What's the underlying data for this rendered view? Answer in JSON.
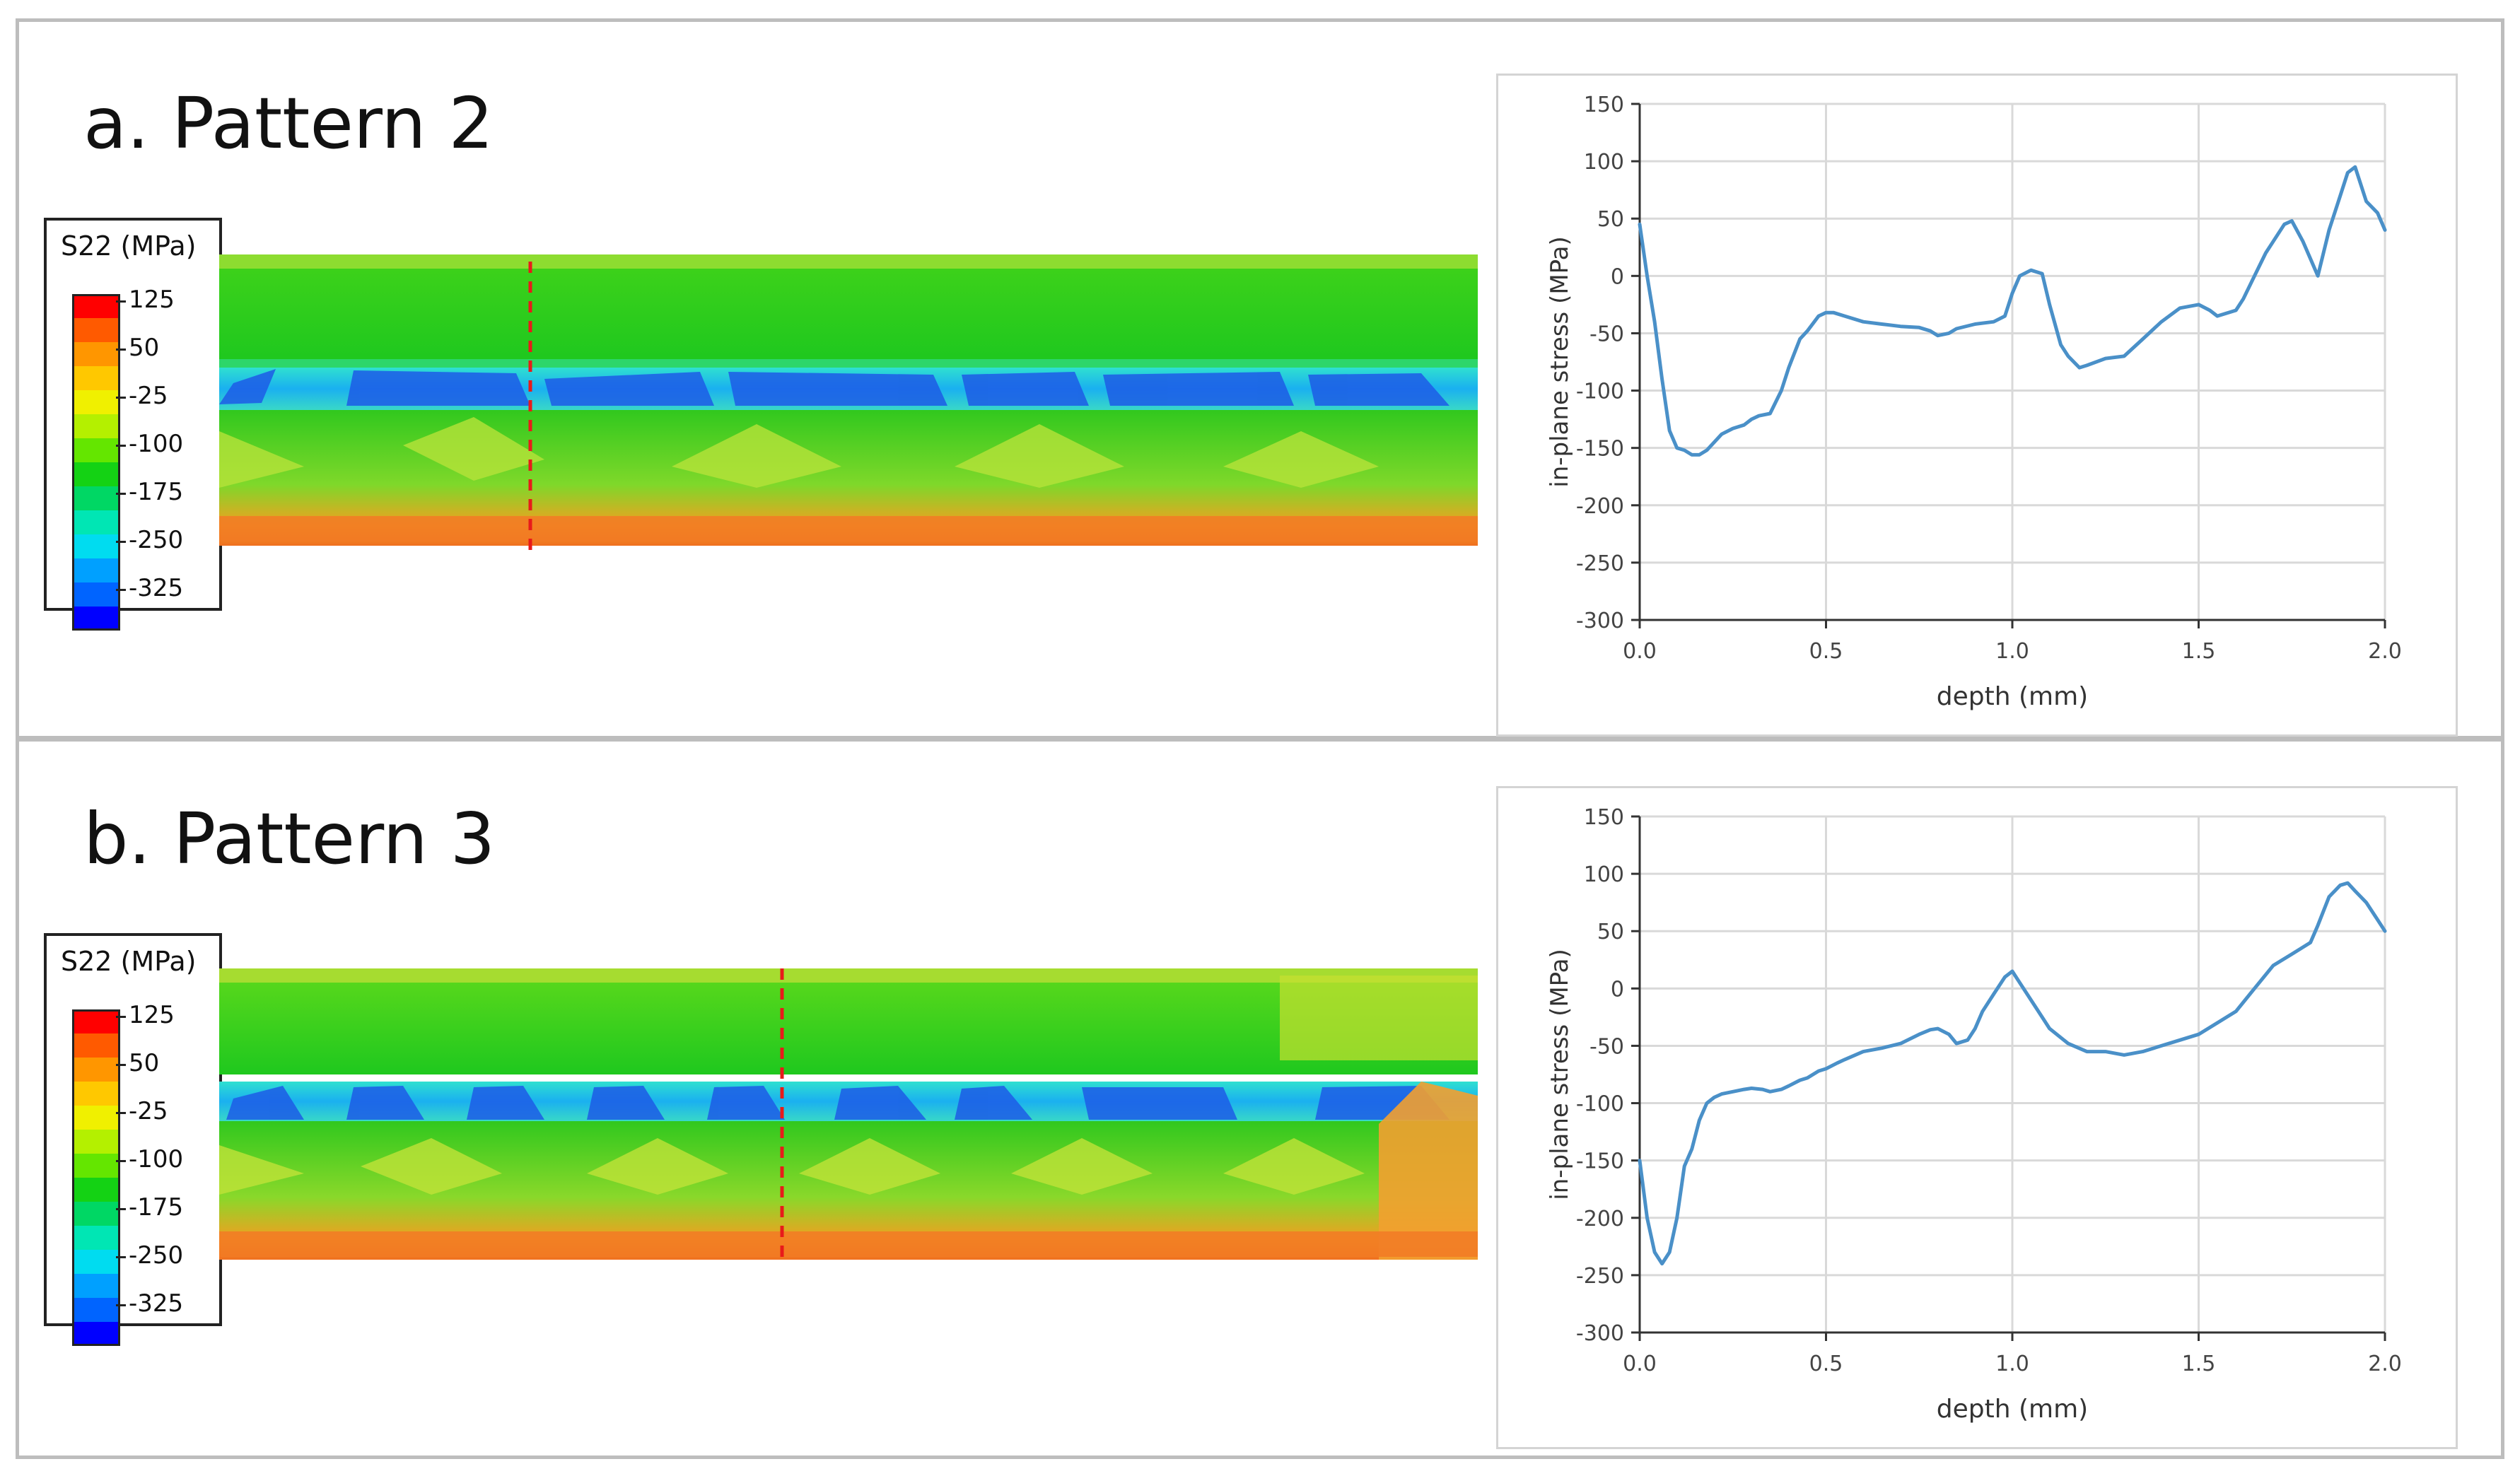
{
  "panels": [
    {
      "id": "a",
      "title": "a. Pattern 2",
      "legend": {
        "title": "S22 (MPa)",
        "labels": [
          "125",
          "50",
          "-25",
          "-100",
          "-175",
          "-250",
          "-325"
        ]
      },
      "section_line": "vertical dashed red line marking the extraction location"
    },
    {
      "id": "b",
      "title": "b. Pattern 3",
      "legend": {
        "title": "S22 (MPa)",
        "labels": [
          "125",
          "50",
          "-25",
          "-100",
          "-175",
          "-250",
          "-325"
        ]
      },
      "section_line": "vertical dashed red line marking the extraction location"
    }
  ],
  "legend_colors": [
    "#ff0000",
    "#ff5a00",
    "#ff9600",
    "#ffc800",
    "#f0f000",
    "#b4f000",
    "#64e600",
    "#14d214",
    "#00d764",
    "#00e6b4",
    "#00dcf0",
    "#00a0ff",
    "#0064ff",
    "#0000ff"
  ],
  "line_color": "#4a90c8",
  "chart_data": [
    {
      "type": "line",
      "panel": "a",
      "title": "",
      "xlabel": "depth (mm)",
      "ylabel": "in-plane stress (MPa)",
      "xlim": [
        0,
        2.0
      ],
      "ylim": [
        -300,
        150
      ],
      "xticks": [
        "0.0",
        "0.5",
        "1.0",
        "1.5",
        "2.0"
      ],
      "yticks": [
        "150",
        "100",
        "50",
        "0",
        "-50",
        "-100",
        "-150",
        "-200",
        "-250",
        "-300"
      ],
      "x": [
        0.0,
        0.02,
        0.04,
        0.06,
        0.08,
        0.1,
        0.12,
        0.14,
        0.16,
        0.18,
        0.2,
        0.22,
        0.25,
        0.28,
        0.3,
        0.32,
        0.35,
        0.38,
        0.4,
        0.43,
        0.45,
        0.48,
        0.5,
        0.52,
        0.55,
        0.6,
        0.65,
        0.7,
        0.75,
        0.78,
        0.8,
        0.83,
        0.85,
        0.9,
        0.95,
        0.98,
        1.0,
        1.02,
        1.05,
        1.08,
        1.1,
        1.13,
        1.15,
        1.18,
        1.2,
        1.25,
        1.3,
        1.35,
        1.4,
        1.45,
        1.5,
        1.53,
        1.55,
        1.6,
        1.62,
        1.65,
        1.68,
        1.7,
        1.73,
        1.75,
        1.78,
        1.8,
        1.82,
        1.85,
        1.88,
        1.9,
        1.92,
        1.95,
        1.98,
        2.0
      ],
      "y": [
        45,
        0,
        -40,
        -90,
        -135,
        -150,
        -152,
        -156,
        -156,
        -152,
        -145,
        -138,
        -133,
        -130,
        -125,
        -122,
        -120,
        -100,
        -80,
        -55,
        -48,
        -35,
        -32,
        -32,
        -35,
        -40,
        -42,
        -44,
        -45,
        -48,
        -52,
        -50,
        -46,
        -42,
        -40,
        -35,
        -15,
        0,
        5,
        2,
        -25,
        -60,
        -70,
        -80,
        -78,
        -72,
        -70,
        -55,
        -40,
        -28,
        -25,
        -30,
        -35,
        -30,
        -20,
        0,
        20,
        30,
        45,
        48,
        30,
        15,
        0,
        40,
        70,
        90,
        95,
        65,
        55,
        40
      ]
    },
    {
      "type": "line",
      "panel": "b",
      "title": "",
      "xlabel": "depth (mm)",
      "ylabel": "in-plane stress (MPa)",
      "xlim": [
        0,
        2.0
      ],
      "ylim": [
        -300,
        150
      ],
      "xticks": [
        "0.0",
        "0.5",
        "1.0",
        "1.5",
        "2.0"
      ],
      "yticks": [
        "150",
        "100",
        "50",
        "0",
        "-50",
        "-100",
        "-150",
        "-200",
        "-250",
        "-300"
      ],
      "x": [
        0.0,
        0.02,
        0.04,
        0.06,
        0.08,
        0.1,
        0.12,
        0.14,
        0.16,
        0.18,
        0.2,
        0.22,
        0.25,
        0.28,
        0.3,
        0.33,
        0.35,
        0.38,
        0.4,
        0.43,
        0.45,
        0.48,
        0.5,
        0.53,
        0.55,
        0.6,
        0.65,
        0.7,
        0.75,
        0.78,
        0.8,
        0.83,
        0.85,
        0.88,
        0.9,
        0.92,
        0.95,
        0.98,
        1.0,
        1.02,
        1.05,
        1.08,
        1.1,
        1.15,
        1.2,
        1.25,
        1.3,
        1.35,
        1.4,
        1.45,
        1.5,
        1.55,
        1.6,
        1.65,
        1.7,
        1.75,
        1.8,
        1.82,
        1.85,
        1.88,
        1.9,
        1.92,
        1.95,
        1.98,
        2.0
      ],
      "y": [
        -150,
        -200,
        -230,
        -240,
        -230,
        -200,
        -155,
        -140,
        -115,
        -100,
        -95,
        -92,
        -90,
        -88,
        -87,
        -88,
        -90,
        -88,
        -85,
        -80,
        -78,
        -72,
        -70,
        -65,
        -62,
        -55,
        -52,
        -48,
        -40,
        -36,
        -35,
        -40,
        -48,
        -45,
        -35,
        -20,
        -5,
        10,
        15,
        5,
        -10,
        -25,
        -35,
        -48,
        -55,
        -55,
        -58,
        -55,
        -50,
        -45,
        -40,
        -30,
        -20,
        0,
        20,
        30,
        40,
        55,
        80,
        90,
        92,
        85,
        75,
        60,
        50
      ]
    }
  ]
}
